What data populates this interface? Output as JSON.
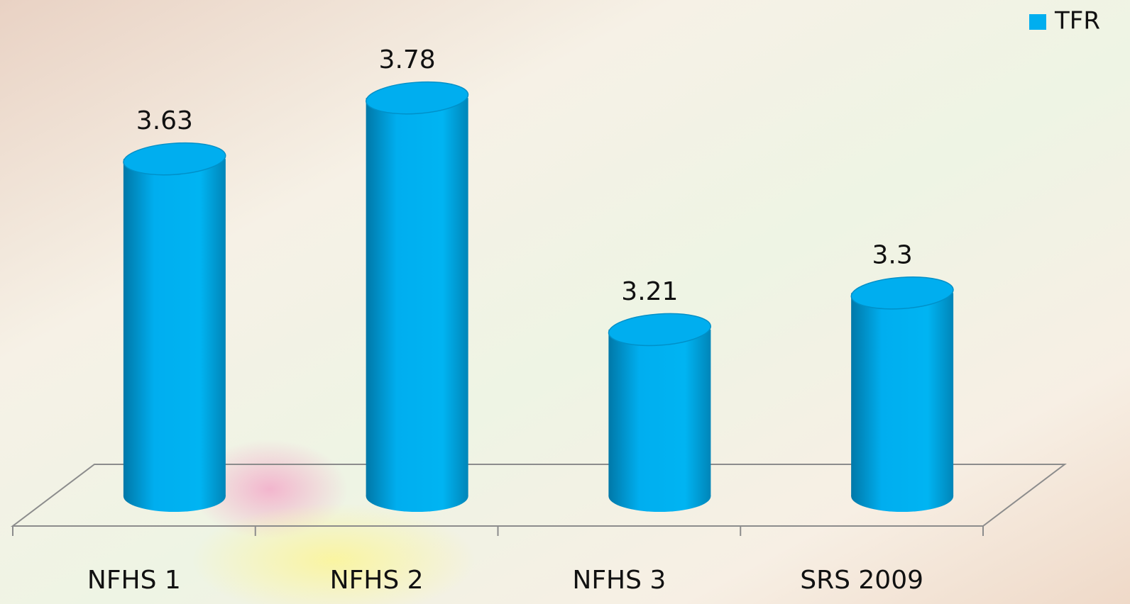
{
  "chart_data": {
    "type": "bar",
    "style": "cylinder",
    "categories": [
      "NFHS 1",
      "NFHS 2",
      "NFHS 3",
      "SRS 2009"
    ],
    "series": [
      {
        "name": "TFR",
        "color": "#00aeef",
        "values": [
          3.63,
          3.78,
          3.21,
          3.3
        ]
      }
    ],
    "ylim": [
      2.8,
      4.0
    ],
    "legend": "top-right"
  }
}
